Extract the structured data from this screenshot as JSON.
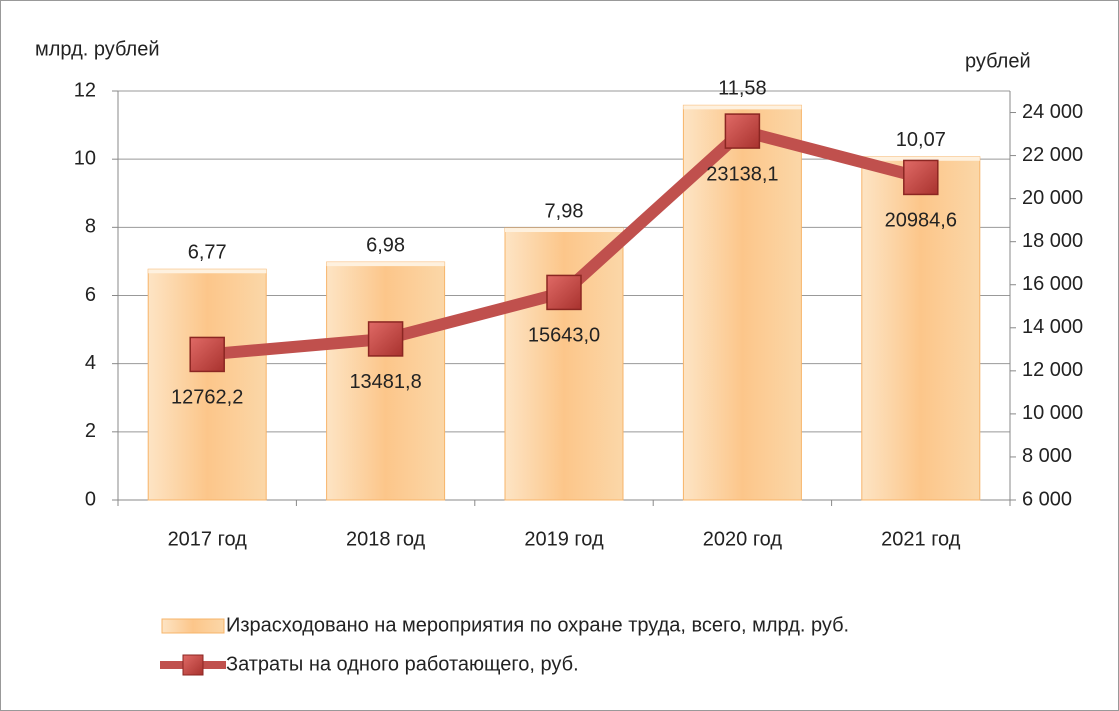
{
  "chart_data": {
    "type": "bar_line",
    "y_label": "млрд. рублей",
    "y2_label": "рублей",
    "categories": [
      "2017 год",
      "2018 год",
      "2019 год",
      "2020 год",
      "2021 год"
    ],
    "series": [
      {
        "name": "Израсходовано на мероприятия по охране труда, всего, млрд. руб.",
        "type": "bar",
        "color": "#fcc68a",
        "values": [
          6.77,
          6.98,
          7.98,
          11.58,
          10.07
        ],
        "value_labels": [
          "6,77",
          "6,98",
          "7,98",
          "11,58",
          "10,07"
        ]
      },
      {
        "name": "Затраты на одного работающего, руб.",
        "type": "line",
        "axis": "y2",
        "color": "#c0504d",
        "values": [
          12762.2,
          13481.8,
          15643.0,
          23138.1,
          20984.6
        ],
        "value_labels": [
          "12762,2",
          "13481,8",
          "15643,0",
          "23138,1",
          "20984,6"
        ]
      }
    ],
    "ylim": [
      0,
      12
    ],
    "yticks": [
      0,
      2,
      4,
      6,
      8,
      10,
      12
    ],
    "y2lim": [
      6000,
      25000
    ],
    "y2ticks": [
      {
        "value": 6000,
        "label": "6 000"
      },
      {
        "value": 8000,
        "label": "8 000"
      },
      {
        "value": 10000,
        "label": "10 000"
      },
      {
        "value": 12000,
        "label": "12 000"
      },
      {
        "value": 14000,
        "label": "14 000"
      },
      {
        "value": 16000,
        "label": "16 000"
      },
      {
        "value": 18000,
        "label": "18 000"
      },
      {
        "value": 20000,
        "label": "20 000"
      },
      {
        "value": 22000,
        "label": "22 000"
      },
      {
        "value": 24000,
        "label": "24 000"
      }
    ],
    "grid": true,
    "legend": "bottom"
  }
}
